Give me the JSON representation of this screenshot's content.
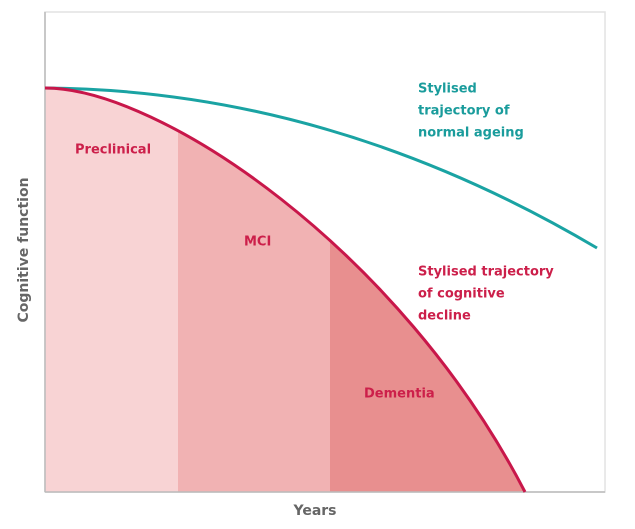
{
  "axes": {
    "x_label": "Years",
    "y_label": "Cognitive function"
  },
  "curves": [
    {
      "label_lines": [
        "Stylised",
        "trajectory of",
        "normal ageing"
      ]
    },
    {
      "label_lines": [
        "Stylised trajectory",
        "of cognitive",
        "decline"
      ]
    }
  ],
  "stages": [
    "Preclinical",
    "MCI",
    "Dementia"
  ]
}
